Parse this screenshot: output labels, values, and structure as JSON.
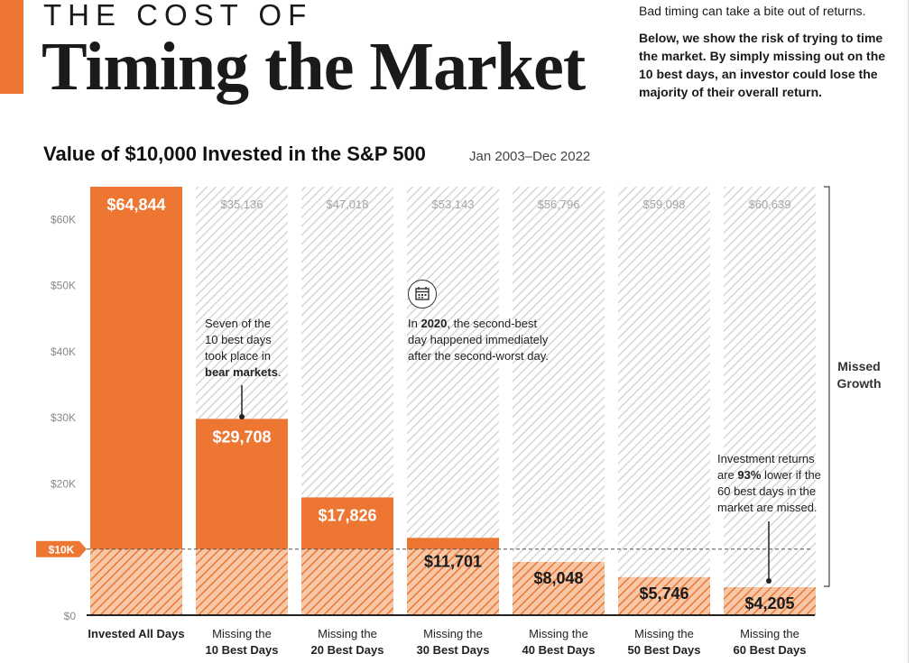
{
  "header": {
    "kicker": "THE COST OF",
    "headline": "Timing the Market",
    "intro_line1": "Bad timing can take a bite out of returns.",
    "intro_line2": "Below, we show the risk of trying to time the market. By simply missing out on the 10 best days, an investor could lose the majority of their overall return."
  },
  "chart_title": "Value of $10,000 Invested in the S&P 500",
  "chart_subtitle": "Jan 2003–Dec 2022",
  "chart_data": {
    "type": "bar",
    "categories": [
      {
        "line1": "Invested All Days",
        "line2": ""
      },
      {
        "line1": "Missing the",
        "line2": "10 Best Days"
      },
      {
        "line1": "Missing the",
        "line2": "20 Best Days"
      },
      {
        "line1": "Missing the",
        "line2": "30 Best Days"
      },
      {
        "line1": "Missing the",
        "line2": "40 Best Days"
      },
      {
        "line1": "Missing the",
        "line2": "50 Best Days"
      },
      {
        "line1": "Missing the",
        "line2": "60 Best Days"
      }
    ],
    "values": [
      64844,
      29708,
      17826,
      11701,
      8048,
      5746,
      4205
    ],
    "value_labels": [
      "$64,844",
      "$29,708",
      "$17,826",
      "$11,701",
      "$8,048",
      "$5,746",
      "$4,205"
    ],
    "missed_growth_labels": [
      "",
      "$35,136",
      "$47,018",
      "$53,143",
      "$56,796",
      "$59,098",
      "$60,639"
    ],
    "baseline_value": 10000,
    "baseline_label": "$10K",
    "ylim": [
      0,
      65000
    ],
    "yticks": [
      {
        "value": 0,
        "label": "$0"
      },
      {
        "value": 10000,
        "label": ""
      },
      {
        "value": 20000,
        "label": "$20K"
      },
      {
        "value": 30000,
        "label": "$30K"
      },
      {
        "value": 40000,
        "label": "$40K"
      },
      {
        "value": 50000,
        "label": "$50K"
      },
      {
        "value": 60000,
        "label": "$60K"
      }
    ],
    "bracket_label": [
      "Missed",
      "Growth"
    ],
    "colors": {
      "accent": "#ee7633",
      "hatch": "#d9d9d9",
      "baseline_hatch": "#f4b48c",
      "text": "#1a1a1a"
    }
  },
  "annotations": {
    "bear": {
      "l1": "Seven of the",
      "l2": "10 best days",
      "l3": "took place in",
      "bold": "bear markets",
      "tail": "."
    },
    "y2020": {
      "pre": "In ",
      "bold": "2020",
      "post": ", the second-best",
      "l2": "day happened immediately",
      "l3": "after the second-worst day."
    },
    "lower": {
      "l1": "Investment returns",
      "pre": "are ",
      "bold": "93%",
      "post": " lower if the",
      "l3": "60 best days in the",
      "l4": "market are missed."
    }
  },
  "icons": {
    "calendar": "calendar-icon"
  }
}
